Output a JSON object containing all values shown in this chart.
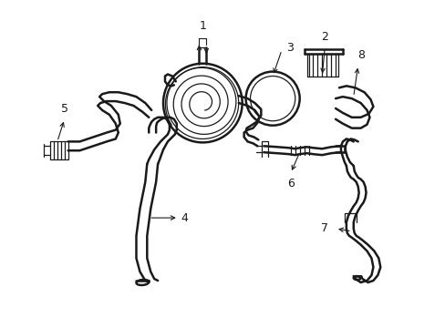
{
  "bg_color": "#ffffff",
  "line_color": "#1a1a1a",
  "lw_thick": 1.8,
  "lw_thin": 0.9,
  "fs_label": 9
}
